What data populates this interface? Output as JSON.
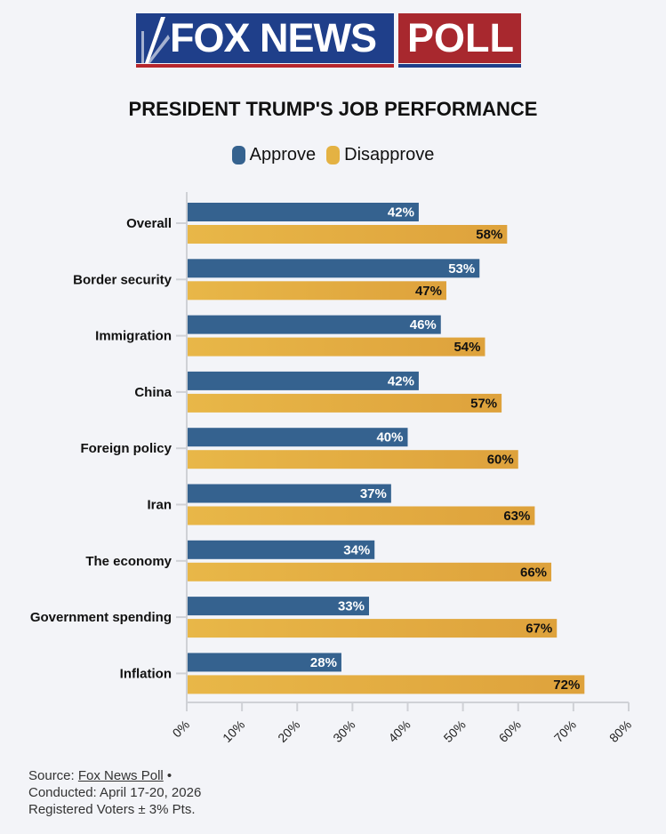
{
  "header": {
    "logo_left": "FOX NEWS",
    "logo_right": "POLL"
  },
  "colors": {
    "approve": "#35628f",
    "disapprove": "#e4b243",
    "background": "#f3f4f8",
    "fox_blue": "#1f3f8a",
    "fox_red": "#a8282e"
  },
  "chart_data": {
    "type": "bar",
    "orientation": "horizontal",
    "title": "PRESIDENT TRUMP'S JOB PERFORMANCE",
    "legend": [
      "Approve",
      "Disapprove"
    ],
    "legend_position": "top-center",
    "categories": [
      "Overall",
      "Border security",
      "Immigration",
      "China",
      "Foreign policy",
      "Iran",
      "The economy",
      "Government spending",
      "Inflation"
    ],
    "series": [
      {
        "name": "Approve",
        "values": [
          42,
          53,
          46,
          42,
          40,
          37,
          34,
          33,
          28
        ]
      },
      {
        "name": "Disapprove",
        "values": [
          58,
          47,
          54,
          57,
          60,
          63,
          66,
          67,
          72
        ]
      }
    ],
    "x_ticks": [
      "0%",
      "10%",
      "20%",
      "30%",
      "40%",
      "50%",
      "60%",
      "70%",
      "80%"
    ],
    "xlim": [
      0,
      80
    ],
    "value_suffix": "%",
    "grid": false,
    "xlabel": "",
    "ylabel": ""
  },
  "footer": {
    "source_prefix": "Source: ",
    "source_link": "Fox News Poll",
    "source_suffix": " •",
    "conducted": "Conducted: April 17-20, 2026",
    "margin": "Registered Voters ± 3% Pts."
  }
}
